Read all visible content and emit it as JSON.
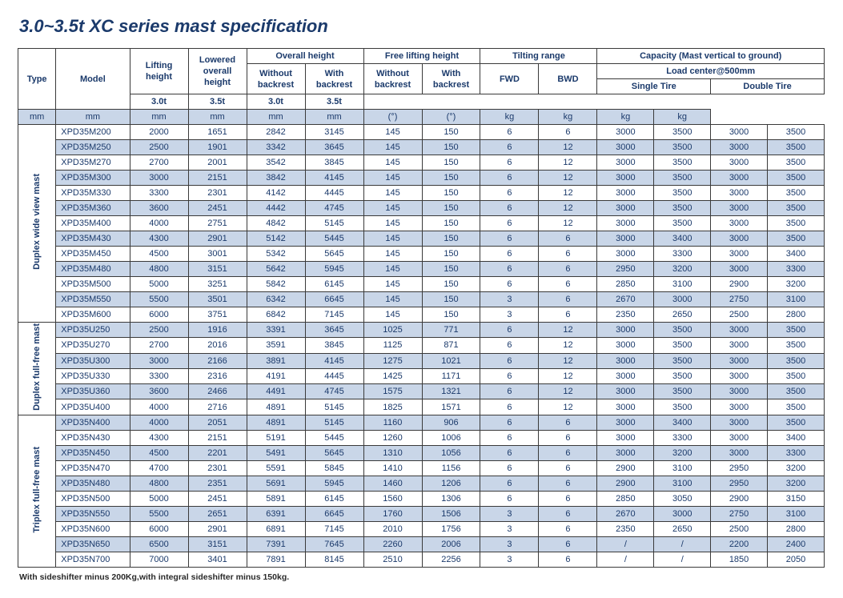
{
  "title": "3.0~3.5t XC series mast specification",
  "footnote": "With sideshifter minus 200Kg,with integral sideshifter minus 150kg.",
  "colors": {
    "heading": "#1b3a6b",
    "band": "#c9d6e8",
    "border": "#3a3a3a",
    "background": "#ffffff"
  },
  "header": {
    "type": "Type",
    "model": "Model",
    "lifting_height": "Lifting height",
    "lowered_overall_height": "Lowered overall height",
    "overall_height": "Overall height",
    "without_backrest": "Without backrest",
    "with_backrest": "With backrest",
    "free_lifting_height": "Free lifting height",
    "tilting_range": "Tilting range",
    "fwd": "FWD",
    "bwd": "BWD",
    "capacity": "Capacity (Mast vertical to ground)",
    "load_center": "Load center@500mm",
    "single_tire": "Single Tire",
    "double_tire": "Double Tire",
    "t30": "3.0t",
    "t35": "3.5t"
  },
  "units": {
    "mm": "mm",
    "deg": "(°)",
    "kg": "kg"
  },
  "sections": [
    {
      "type_label": "Duplex wide view mast",
      "rows": [
        {
          "b": 0,
          "m": "XPD35M200",
          "c": [
            "2000",
            "1651",
            "2842",
            "3145",
            "145",
            "150",
            "6",
            "6",
            "3000",
            "3500",
            "3000",
            "3500"
          ]
        },
        {
          "b": 1,
          "m": "XPD35M250",
          "c": [
            "2500",
            "1901",
            "3342",
            "3645",
            "145",
            "150",
            "6",
            "12",
            "3000",
            "3500",
            "3000",
            "3500"
          ]
        },
        {
          "b": 0,
          "m": "XPD35M270",
          "c": [
            "2700",
            "2001",
            "3542",
            "3845",
            "145",
            "150",
            "6",
            "12",
            "3000",
            "3500",
            "3000",
            "3500"
          ]
        },
        {
          "b": 1,
          "m": "XPD35M300",
          "c": [
            "3000",
            "2151",
            "3842",
            "4145",
            "145",
            "150",
            "6",
            "12",
            "3000",
            "3500",
            "3000",
            "3500"
          ]
        },
        {
          "b": 0,
          "m": "XPD35M330",
          "c": [
            "3300",
            "2301",
            "4142",
            "4445",
            "145",
            "150",
            "6",
            "12",
            "3000",
            "3500",
            "3000",
            "3500"
          ]
        },
        {
          "b": 1,
          "m": "XPD35M360",
          "c": [
            "3600",
            "2451",
            "4442",
            "4745",
            "145",
            "150",
            "6",
            "12",
            "3000",
            "3500",
            "3000",
            "3500"
          ]
        },
        {
          "b": 0,
          "m": "XPD35M400",
          "c": [
            "4000",
            "2751",
            "4842",
            "5145",
            "145",
            "150",
            "6",
            "12",
            "3000",
            "3500",
            "3000",
            "3500"
          ]
        },
        {
          "b": 1,
          "m": "XPD35M430",
          "c": [
            "4300",
            "2901",
            "5142",
            "5445",
            "145",
            "150",
            "6",
            "6",
            "3000",
            "3400",
            "3000",
            "3500"
          ]
        },
        {
          "b": 0,
          "m": "XPD35M450",
          "c": [
            "4500",
            "3001",
            "5342",
            "5645",
            "145",
            "150",
            "6",
            "6",
            "3000",
            "3300",
            "3000",
            "3400"
          ]
        },
        {
          "b": 1,
          "m": "XPD35M480",
          "c": [
            "4800",
            "3151",
            "5642",
            "5945",
            "145",
            "150",
            "6",
            "6",
            "2950",
            "3200",
            "3000",
            "3300"
          ]
        },
        {
          "b": 0,
          "m": "XPD35M500",
          "c": [
            "5000",
            "3251",
            "5842",
            "6145",
            "145",
            "150",
            "6",
            "6",
            "2850",
            "3100",
            "2900",
            "3200"
          ]
        },
        {
          "b": 1,
          "m": "XPD35M550",
          "c": [
            "5500",
            "3501",
            "6342",
            "6645",
            "145",
            "150",
            "3",
            "6",
            "2670",
            "3000",
            "2750",
            "3100"
          ]
        },
        {
          "b": 0,
          "m": "XPD35M600",
          "c": [
            "6000",
            "3751",
            "6842",
            "7145",
            "145",
            "150",
            "3",
            "6",
            "2350",
            "2650",
            "2500",
            "2800"
          ]
        }
      ]
    },
    {
      "type_label": "Duplex full-free mast",
      "rows": [
        {
          "b": 1,
          "m": "XPD35U250",
          "c": [
            "2500",
            "1916",
            "3391",
            "3645",
            "1025",
            "771",
            "6",
            "12",
            "3000",
            "3500",
            "3000",
            "3500"
          ]
        },
        {
          "b": 0,
          "m": "XPD35U270",
          "c": [
            "2700",
            "2016",
            "3591",
            "3845",
            "1125",
            "871",
            "6",
            "12",
            "3000",
            "3500",
            "3000",
            "3500"
          ]
        },
        {
          "b": 1,
          "m": "XPD35U300",
          "c": [
            "3000",
            "2166",
            "3891",
            "4145",
            "1275",
            "1021",
            "6",
            "12",
            "3000",
            "3500",
            "3000",
            "3500"
          ]
        },
        {
          "b": 0,
          "m": "XPD35U330",
          "c": [
            "3300",
            "2316",
            "4191",
            "4445",
            "1425",
            "1171",
            "6",
            "12",
            "3000",
            "3500",
            "3000",
            "3500"
          ]
        },
        {
          "b": 1,
          "m": "XPD35U360",
          "c": [
            "3600",
            "2466",
            "4491",
            "4745",
            "1575",
            "1321",
            "6",
            "12",
            "3000",
            "3500",
            "3000",
            "3500"
          ]
        },
        {
          "b": 0,
          "m": "XPD35U400",
          "c": [
            "4000",
            "2716",
            "4891",
            "5145",
            "1825",
            "1571",
            "6",
            "12",
            "3000",
            "3500",
            "3000",
            "3500"
          ]
        }
      ]
    },
    {
      "type_label": "Triplex full-free mast",
      "rows": [
        {
          "b": 1,
          "m": "XPD35N400",
          "c": [
            "4000",
            "2051",
            "4891",
            "5145",
            "1160",
            "906",
            "6",
            "6",
            "3000",
            "3400",
            "3000",
            "3500"
          ]
        },
        {
          "b": 0,
          "m": "XPD35N430",
          "c": [
            "4300",
            "2151",
            "5191",
            "5445",
            "1260",
            "1006",
            "6",
            "6",
            "3000",
            "3300",
            "3000",
            "3400"
          ]
        },
        {
          "b": 1,
          "m": "XPD35N450",
          "c": [
            "4500",
            "2201",
            "5491",
            "5645",
            "1310",
            "1056",
            "6",
            "6",
            "3000",
            "3200",
            "3000",
            "3300"
          ]
        },
        {
          "b": 0,
          "m": "XPD35N470",
          "c": [
            "4700",
            "2301",
            "5591",
            "5845",
            "1410",
            "1156",
            "6",
            "6",
            "2900",
            "3100",
            "2950",
            "3200"
          ]
        },
        {
          "b": 1,
          "m": "XPD35N480",
          "c": [
            "4800",
            "2351",
            "5691",
            "5945",
            "1460",
            "1206",
            "6",
            "6",
            "2900",
            "3100",
            "2950",
            "3200"
          ]
        },
        {
          "b": 0,
          "m": "XPD35N500",
          "c": [
            "5000",
            "2451",
            "5891",
            "6145",
            "1560",
            "1306",
            "6",
            "6",
            "2850",
            "3050",
            "2900",
            "3150"
          ]
        },
        {
          "b": 1,
          "m": "XPD35N550",
          "c": [
            "5500",
            "2651",
            "6391",
            "6645",
            "1760",
            "1506",
            "3",
            "6",
            "2670",
            "3000",
            "2750",
            "3100"
          ]
        },
        {
          "b": 0,
          "m": "XPD35N600",
          "c": [
            "6000",
            "2901",
            "6891",
            "7145",
            "2010",
            "1756",
            "3",
            "6",
            "2350",
            "2650",
            "2500",
            "2800"
          ]
        },
        {
          "b": 1,
          "m": "XPD35N650",
          "c": [
            "6500",
            "3151",
            "7391",
            "7645",
            "2260",
            "2006",
            "3",
            "6",
            "/",
            "/",
            "2200",
            "2400"
          ]
        },
        {
          "b": 0,
          "m": "XPD35N700",
          "c": [
            "7000",
            "3401",
            "7891",
            "8145",
            "2510",
            "2256",
            "3",
            "6",
            "/",
            "/",
            "1850",
            "2050"
          ]
        }
      ]
    }
  ]
}
